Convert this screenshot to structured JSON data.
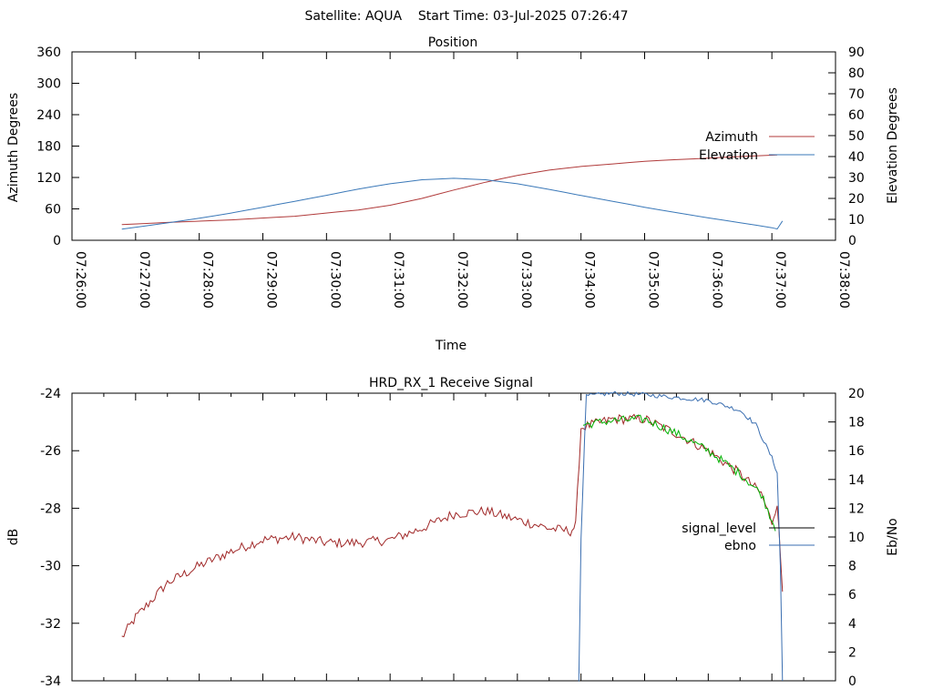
{
  "header": {
    "text": "Satellite: AQUA    Start Time: 03-Jul-2025 07:26:47"
  },
  "colors": {
    "azimuth": "#b03a3a",
    "elevation": "#3a78b8",
    "signal_level": "#a02828",
    "ebno": "#3a6eb0",
    "ebno_green": "#00b000",
    "legend_signal_level": "#000000"
  },
  "chart_data": [
    {
      "type": "line",
      "title": "Position",
      "xlabel": "Time",
      "ylabel": "Azimuth Degrees",
      "y2label": "Elevation Degrees",
      "xlim": [
        "07:26:00",
        "07:38:00"
      ],
      "ylim": [
        0,
        360
      ],
      "y2lim": [
        0,
        90
      ],
      "x_ticks": [
        "07:26:00",
        "07:27:00",
        "07:28:00",
        "07:29:00",
        "07:30:00",
        "07:31:00",
        "07:32:00",
        "07:33:00",
        "07:34:00",
        "07:35:00",
        "07:36:00",
        "07:37:00",
        "07:38:00"
      ],
      "y_ticks": [
        "0",
        "60",
        "120",
        "180",
        "240",
        "300",
        "360"
      ],
      "y2_ticks": [
        "0",
        "10",
        "20",
        "30",
        "40",
        "50",
        "60",
        "70",
        "80",
        "90"
      ],
      "legend_position": "right",
      "series": [
        {
          "name": "Azimuth",
          "axis": "y",
          "x": [
            "07:26:47",
            "07:27:30",
            "07:28:30",
            "07:29:30",
            "07:30:30",
            "07:31:00",
            "07:31:30",
            "07:32:00",
            "07:32:30",
            "07:33:00",
            "07:33:30",
            "07:34:00",
            "07:34:30",
            "07:35:00",
            "07:35:30",
            "07:36:00",
            "07:36:30",
            "07:37:05"
          ],
          "values": [
            30,
            34,
            39,
            46,
            58,
            67,
            80,
            96,
            111,
            124,
            134,
            141,
            146,
            151,
            154,
            157,
            160,
            163
          ]
        },
        {
          "name": "Elevation",
          "axis": "y2",
          "x": [
            "07:26:47",
            "07:27:30",
            "07:28:00",
            "07:28:30",
            "07:29:00",
            "07:29:30",
            "07:30:00",
            "07:30:30",
            "07:31:00",
            "07:31:30",
            "07:32:00",
            "07:32:30",
            "07:33:00",
            "07:33:30",
            "07:34:00",
            "07:34:30",
            "07:35:00",
            "07:35:30",
            "07:36:00",
            "07:36:30",
            "07:37:00",
            "07:37:05",
            "07:37:10"
          ],
          "values": [
            5.3,
            8.3,
            10.5,
            13.0,
            15.8,
            18.6,
            21.5,
            24.5,
            27.0,
            28.9,
            29.6,
            28.9,
            27.0,
            24.3,
            21.4,
            18.6,
            15.8,
            13.2,
            10.7,
            8.4,
            6.0,
            5.4,
            9.2
          ]
        }
      ]
    },
    {
      "type": "line",
      "title": "HRD_RX_1 Receive Signal",
      "xlabel": "",
      "ylabel": "dB",
      "y2label": "Eb/No",
      "xlim": [
        "07:26:00",
        "07:38:00"
      ],
      "ylim": [
        -34,
        -24
      ],
      "y2lim": [
        0,
        20
      ],
      "y_ticks": [
        "-34",
        "-32",
        "-30",
        "-28",
        "-26",
        "-24"
      ],
      "y2_ticks": [
        "0",
        "2",
        "4",
        "6",
        "8",
        "10",
        "12",
        "14",
        "16",
        "18",
        "20"
      ],
      "legend_position": "right",
      "series": [
        {
          "name": "signal_level",
          "axis": "y",
          "x": [
            "07:26:47",
            "07:27:00",
            "07:27:30",
            "07:28:00",
            "07:28:30",
            "07:29:00",
            "07:29:30",
            "07:30:00",
            "07:30:30",
            "07:31:00",
            "07:31:30",
            "07:32:00",
            "07:32:30",
            "07:33:00",
            "07:33:30",
            "07:33:50",
            "07:33:55",
            "07:34:00",
            "07:34:30",
            "07:35:00",
            "07:35:30",
            "07:36:00",
            "07:36:30",
            "07:36:50",
            "07:37:00",
            "07:37:05",
            "07:37:10"
          ],
          "values": [
            -32.5,
            -31.8,
            -30.6,
            -30.0,
            -29.5,
            -29.1,
            -29.0,
            -29.2,
            -29.2,
            -29.1,
            -28.7,
            -28.2,
            -28.1,
            -28.4,
            -28.7,
            -28.8,
            -28.6,
            -25.2,
            -24.9,
            -24.9,
            -25.4,
            -26.0,
            -26.8,
            -27.5,
            -28.5,
            -27.8,
            -30.9
          ]
        },
        {
          "name": "ebno",
          "axis": "y2",
          "x": [
            "07:33:58",
            "07:34:00",
            "07:34:05",
            "07:34:30",
            "07:35:00",
            "07:35:30",
            "07:36:00",
            "07:36:30",
            "07:36:45",
            "07:37:00",
            "07:37:05",
            "07:37:08",
            "07:37:10"
          ],
          "values": [
            0,
            10,
            19.8,
            20.0,
            19.9,
            19.7,
            19.5,
            18.8,
            17.8,
            15.5,
            14.5,
            8.0,
            0
          ]
        }
      ]
    }
  ]
}
